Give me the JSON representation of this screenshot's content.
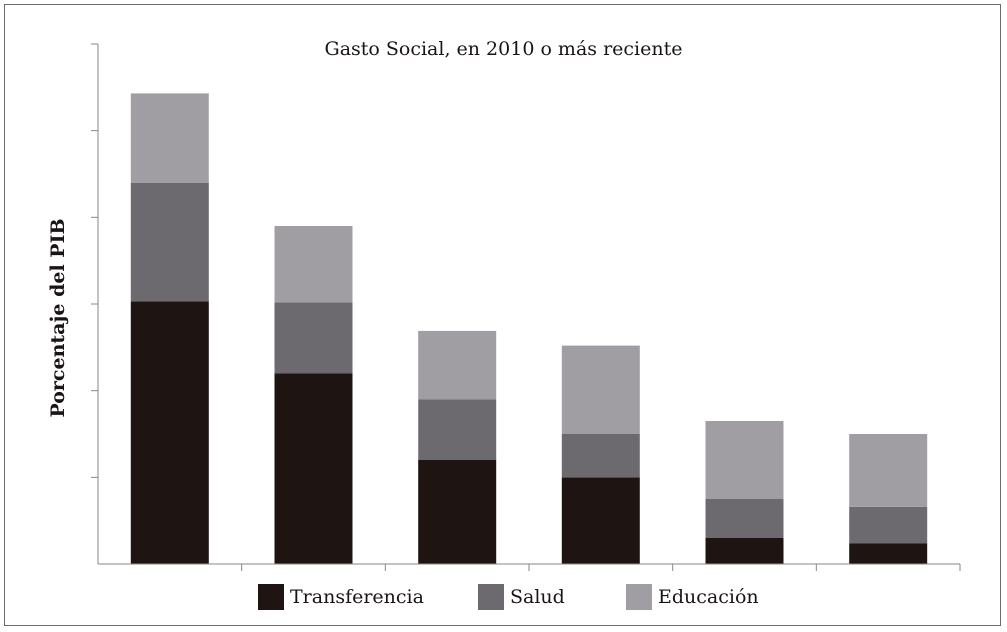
{
  "chart_data": {
    "type": "bar",
    "stacked": true,
    "title": "Gasto Social, en 2010 o más reciente",
    "xlabel": "",
    "ylabel": "Porcentaje del PIB",
    "categories": [
      "",
      "",
      "",
      "",
      "",
      ""
    ],
    "ylim": [
      0,
      6
    ],
    "ytick_count": 6,
    "grid": false,
    "legend_position": "bottom",
    "series": [
      {
        "name": "Transferencia",
        "color": "#1e1412",
        "values": [
          3.03,
          2.2,
          1.2,
          1.0,
          0.3,
          0.24
        ]
      },
      {
        "name": "Salud",
        "color": "#6d6a6f",
        "values": [
          1.37,
          0.82,
          0.7,
          0.5,
          0.45,
          0.42
        ]
      },
      {
        "name": "Educación",
        "color": "#a09ea3",
        "values": [
          1.03,
          0.88,
          0.79,
          1.02,
          0.9,
          0.84
        ]
      }
    ]
  }
}
